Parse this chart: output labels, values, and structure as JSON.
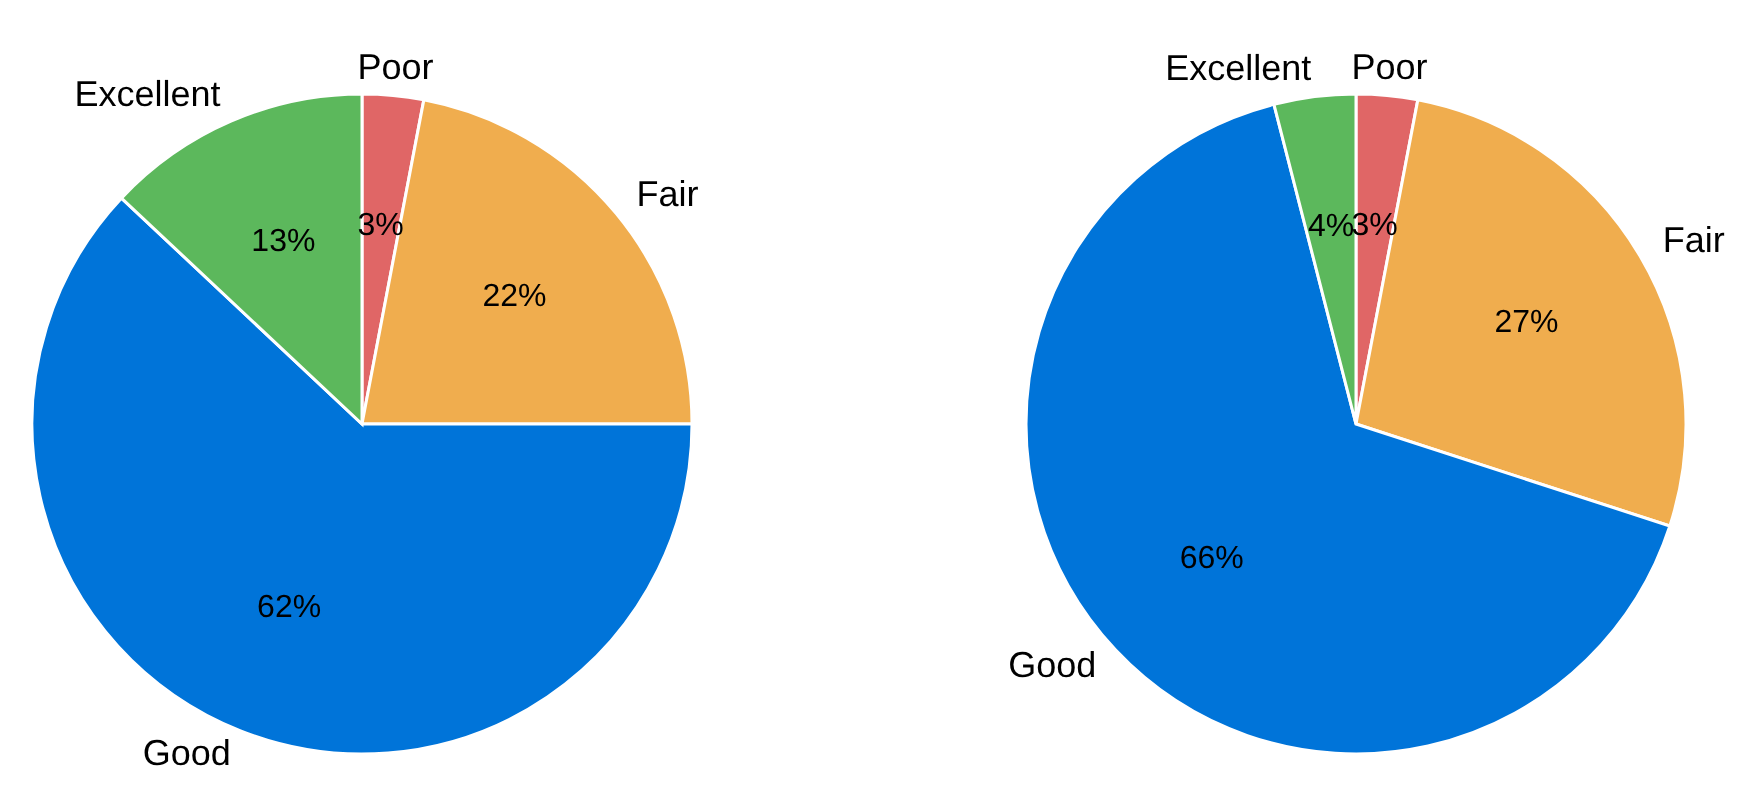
{
  "chart_data": [
    {
      "type": "pie",
      "categories": [
        "Poor",
        "Fair",
        "Good",
        "Excellent"
      ],
      "values": [
        3,
        22,
        62,
        13
      ],
      "value_labels": [
        "3%",
        "22%",
        "62%",
        "13%"
      ],
      "colors": [
        "#e06666",
        "#f0ad4e",
        "#0074d9",
        "#5cb85c"
      ]
    },
    {
      "type": "pie",
      "categories": [
        "Poor",
        "Fair",
        "Good",
        "Excellent"
      ],
      "values": [
        3,
        27,
        66,
        4
      ],
      "value_labels": [
        "3%",
        "27%",
        "66%",
        "4%"
      ],
      "colors": [
        "#e06666",
        "#f0ad4e",
        "#0074d9",
        "#5cb85c"
      ]
    }
  ]
}
